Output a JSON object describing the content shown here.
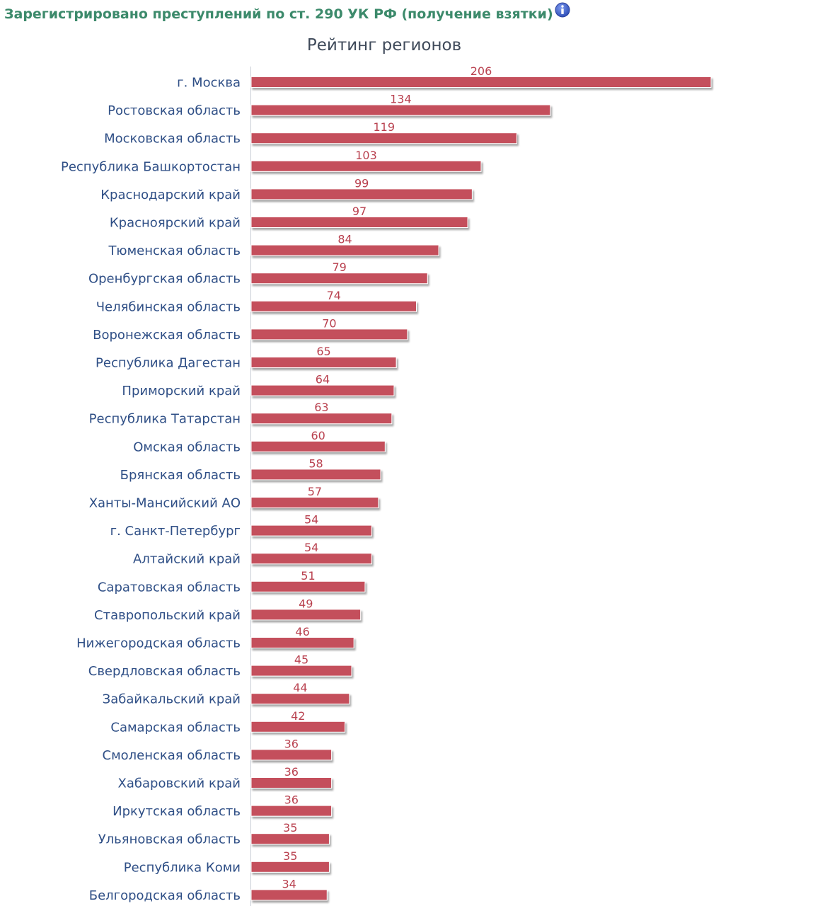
{
  "header": {
    "title": "Зарегистрировано преступлений по ст. 290 УК РФ (получение взятки)",
    "info_icon": "info-icon"
  },
  "colors": {
    "header_text": "#3c8a6b",
    "bar": "#c4505c",
    "value_text": "#b9414f",
    "category_text": "#2f4f86",
    "info_icon": "#3f5fc1"
  },
  "chart_data": {
    "type": "bar",
    "orientation": "horizontal",
    "title": "Рейтинг регионов",
    "xlim": [
      0,
      206
    ],
    "grid": false,
    "categories": [
      "г. Москва",
      "Ростовская область",
      "Московская область",
      "Республика Башкортостан",
      "Краснодарский край",
      "Красноярский край",
      "Тюменская область",
      "Оренбургская область",
      "Челябинская область",
      "Воронежская область",
      "Республика Дагестан",
      "Приморский край",
      "Республика Татарстан",
      "Омская область",
      "Брянская область",
      "Ханты-Мансийский АО",
      "г. Санкт-Петербург",
      "Алтайский край",
      "Саратовская область",
      "Ставропольский край",
      "Нижегородская область",
      "Свердловская область",
      "Забайкальский край",
      "Самарская область",
      "Смоленская область",
      "Хабаровский край",
      "Иркутская область",
      "Ульяновская область",
      "Республика Коми",
      "Белгородская область"
    ],
    "values": [
      206,
      134,
      119,
      103,
      99,
      97,
      84,
      79,
      74,
      70,
      65,
      64,
      63,
      60,
      58,
      57,
      54,
      54,
      51,
      49,
      46,
      45,
      44,
      42,
      36,
      36,
      36,
      35,
      35,
      34
    ]
  }
}
